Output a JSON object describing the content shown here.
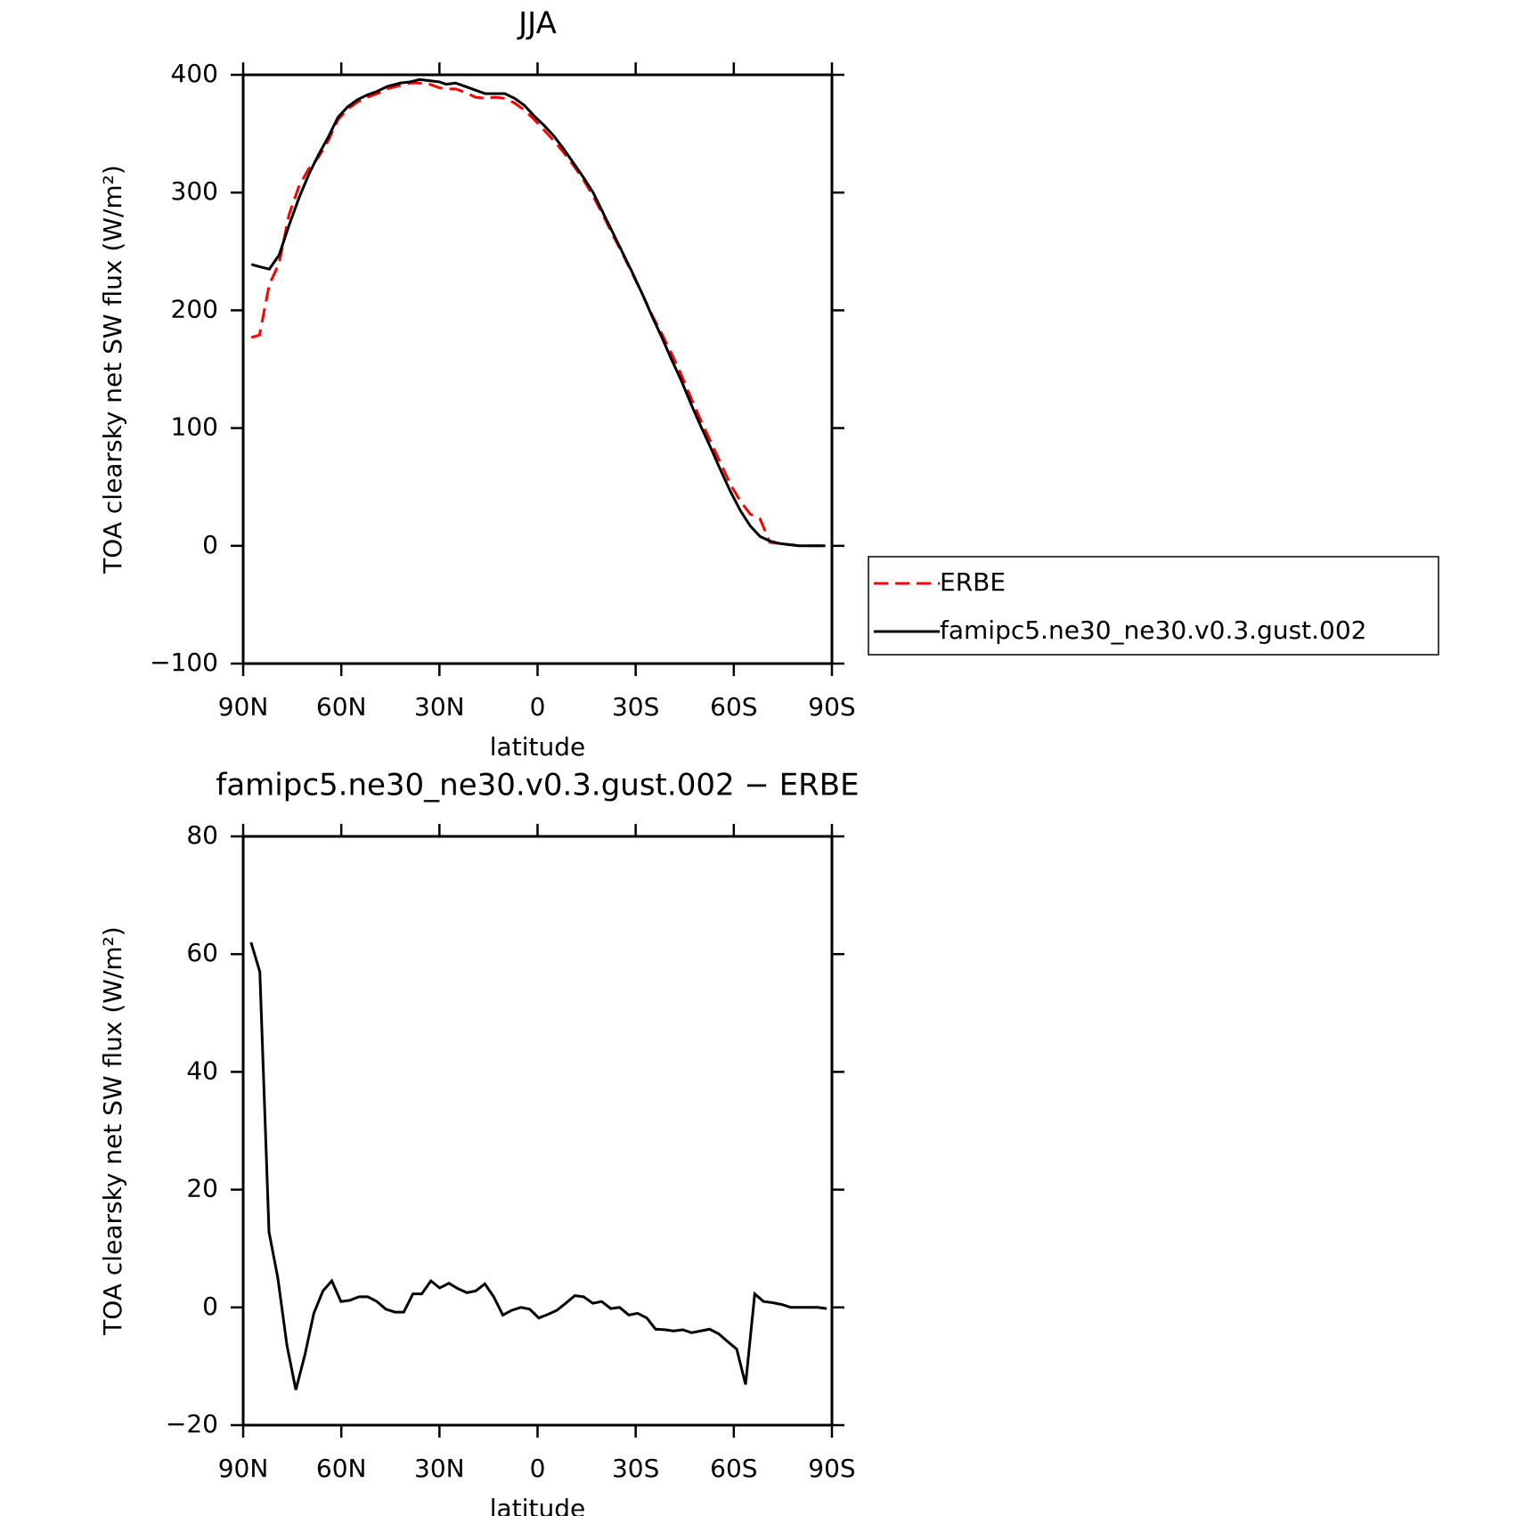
{
  "chart_data": [
    {
      "type": "line",
      "title": "JJA",
      "x_label": "latitude",
      "y_label": "TOA clearsky net SW flux (W/m²)",
      "xlim": [
        90,
        -90
      ],
      "xticks": [
        {
          "value": 90,
          "label": "90N"
        },
        {
          "value": 60,
          "label": "60N"
        },
        {
          "value": 30,
          "label": "30N"
        },
        0,
        {
          "value": -30,
          "label": "30S"
        },
        {
          "value": -60,
          "label": "60S"
        },
        {
          "value": -90,
          "label": "90S"
        }
      ],
      "ylim": [
        -100,
        400
      ],
      "yticks": [
        {
          "value": -100,
          "label": "−100"
        },
        0,
        100,
        200,
        300,
        400
      ],
      "legend": "right",
      "x": [
        87.5,
        85,
        82,
        79,
        76,
        73,
        70,
        67,
        64,
        61,
        58,
        55,
        52,
        49,
        46,
        42,
        39,
        36,
        33,
        30,
        28,
        25,
        22,
        19,
        16,
        13,
        10,
        7,
        4,
        1,
        -2,
        -5,
        -8,
        -11,
        -14,
        -17,
        -20,
        -23,
        -26,
        -29,
        -32,
        -35,
        -38,
        -41,
        -44,
        -47,
        -50,
        -53,
        -56,
        -59,
        -62,
        -65,
        -68,
        -71,
        -74,
        -77,
        -80,
        -83,
        -86,
        -88
      ],
      "series": [
        {
          "name": "ERBE",
          "color": "#ff0000",
          "style": "dashed",
          "values": [
            177,
            179,
            222,
            240,
            281,
            305,
            320,
            330,
            344,
            362,
            371,
            377,
            381,
            384,
            388,
            391,
            393,
            393,
            392,
            389,
            388,
            388,
            385,
            381,
            380,
            381,
            380,
            376,
            370,
            362,
            353,
            344,
            334,
            323,
            311,
            297,
            281,
            264,
            248,
            231,
            214,
            196,
            180,
            163,
            145,
            125,
            106,
            88,
            70,
            52,
            38,
            27,
            23,
            3,
            2,
            1,
            0,
            0,
            0,
            0
          ]
        },
        {
          "name": "famipc5.ne30_ne30.v0.3.gust.002",
          "color": "#000000",
          "style": "solid",
          "values": [
            239,
            237,
            235,
            247,
            272,
            295,
            315,
            332,
            347,
            364,
            373,
            379,
            383,
            386,
            390,
            393,
            394,
            396,
            395,
            394,
            392,
            393,
            390,
            387,
            384,
            384,
            384,
            380,
            374,
            365,
            357,
            348,
            337,
            325,
            313,
            300,
            283,
            266,
            249,
            232,
            214,
            195,
            177,
            158,
            140,
            120,
            101,
            83,
            64,
            46,
            30,
            17,
            8,
            4,
            2,
            1,
            0,
            0,
            0,
            0
          ]
        }
      ]
    },
    {
      "type": "line",
      "title": "famipc5.ne30_ne30.v0.3.gust.002 − ERBE",
      "x_label": "latitude",
      "y_label": "TOA clearsky net SW flux (W/m²)",
      "xlim": [
        90,
        -90
      ],
      "xticks": [
        {
          "value": 90,
          "label": "90N"
        },
        {
          "value": 60,
          "label": "60N"
        },
        {
          "value": 30,
          "label": "30N"
        },
        0,
        {
          "value": -30,
          "label": "30S"
        },
        {
          "value": -60,
          "label": "60S"
        },
        {
          "value": -90,
          "label": "90S"
        }
      ],
      "ylim": [
        -20,
        80
      ],
      "yticks": [
        {
          "value": -20,
          "label": "−20"
        },
        0,
        20,
        40,
        60,
        80
      ],
      "x": [
        87.6,
        84.9,
        82.1,
        79.4,
        76.6,
        73.9,
        71.1,
        68.4,
        65.6,
        62.9,
        60.1,
        57.4,
        54.6,
        51.9,
        49.1,
        46.4,
        43.6,
        40.9,
        38.1,
        35.4,
        32.6,
        29.9,
        27.1,
        24.4,
        21.6,
        18.9,
        16.1,
        13.4,
        10.6,
        7.9,
        5.1,
        2.4,
        -0.4,
        -3.1,
        -5.9,
        -8.6,
        -11.4,
        -14.1,
        -16.9,
        -19.6,
        -22.4,
        -25.1,
        -27.9,
        -30.6,
        -33.4,
        -36.1,
        -38.9,
        -41.6,
        -44.4,
        -47.1,
        -49.9,
        -52.6,
        -55.4,
        -58.1,
        -60.9,
        -63.6,
        -66.4,
        -69.1,
        -71.9,
        -74.6,
        -77.4,
        -80.1,
        -82.9,
        -85.6,
        -88.4
      ],
      "series": [
        {
          "color": "#000000",
          "style": "solid",
          "values": [
            62,
            57,
            12.8,
            5,
            -6.5,
            -14,
            -8,
            -1,
            2.8,
            4.5,
            1,
            1.2,
            1.8,
            1.8,
            1,
            -0.3,
            -0.8,
            -0.8,
            2.3,
            2.3,
            4.5,
            3.3,
            4.1,
            3.2,
            2.5,
            2.8,
            4,
            1.8,
            -1.3,
            -0.5,
            0,
            -0.3,
            -1.8,
            -1.2,
            -0.5,
            0.7,
            2,
            1.8,
            0.7,
            1,
            -0.2,
            0,
            -1.3,
            -1,
            -1.8,
            -3.7,
            -3.8,
            -4,
            -3.8,
            -4.3,
            -4,
            -3.7,
            -4.5,
            -5.8,
            -7.1,
            -13.1,
            2.3,
            1,
            0.8,
            0.5,
            0,
            0,
            0,
            0,
            -0.2
          ]
        }
      ]
    }
  ]
}
